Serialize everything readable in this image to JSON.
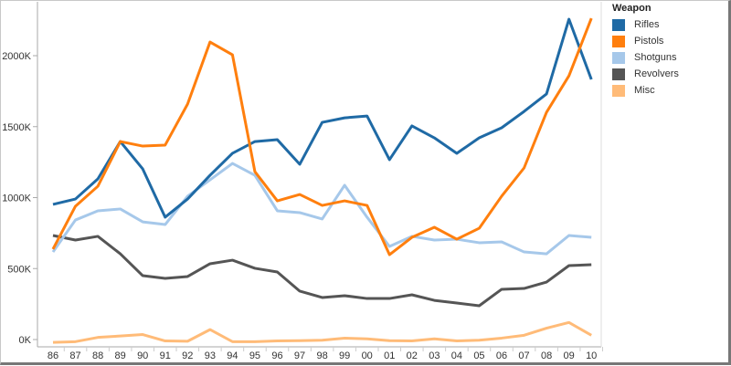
{
  "chart_data": {
    "type": "line",
    "title": "",
    "xlabel": "",
    "ylabel": "",
    "x": [
      "86",
      "87",
      "88",
      "89",
      "90",
      "91",
      "92",
      "93",
      "94",
      "95",
      "96",
      "97",
      "98",
      "99",
      "00",
      "01",
      "02",
      "03",
      "04",
      "05",
      "06",
      "07",
      "08",
      "09",
      "10"
    ],
    "y_ticks": [
      0,
      500,
      1000,
      1500,
      2000
    ],
    "y_tick_labels": [
      "0K",
      "500K",
      "1000K",
      "1500K",
      "2000K"
    ],
    "ylim": [
      -30,
      2350
    ],
    "legend_title": "Weapon",
    "legend_position": "right",
    "series": [
      {
        "name": "Rifles",
        "color": "#1f6aa5",
        "values": [
          952,
          990,
          1132,
          1395,
          1202,
          862,
          990,
          1157,
          1312,
          1395,
          1408,
          1235,
          1530,
          1562,
          1575,
          1267,
          1505,
          1421,
          1312,
          1421,
          1492,
          1607,
          1730,
          2257,
          1833
        ]
      },
      {
        "name": "Pistols",
        "color": "#ff7f0e",
        "values": [
          637,
          939,
          1080,
          1395,
          1363,
          1370,
          1659,
          2096,
          2006,
          1183,
          977,
          1022,
          945,
          977,
          945,
          598,
          720,
          791,
          707,
          784,
          1010,
          1209,
          1601,
          1858,
          2263
        ]
      },
      {
        "name": "Shotguns",
        "color": "#a6c8ea",
        "values": [
          617,
          842,
          907,
          920,
          829,
          810,
          1010,
          1125,
          1241,
          1157,
          907,
          894,
          849,
          1087,
          862,
          656,
          727,
          701,
          707,
          682,
          688,
          617,
          604,
          733,
          720
        ]
      },
      {
        "name": "Revolvers",
        "color": "#555555",
        "values": [
          733,
          701,
          727,
          604,
          450,
          431,
          444,
          534,
          559,
          502,
          476,
          341,
          296,
          309,
          289,
          289,
          315,
          276,
          257,
          238,
          354,
          360,
          405,
          521,
          527
        ]
      },
      {
        "name": "Misc",
        "color": "#ffbb78",
        "values": [
          -20,
          -15,
          15,
          25,
          35,
          -10,
          -12,
          70,
          -15,
          -15,
          -10,
          -8,
          -5,
          10,
          5,
          -8,
          -10,
          5,
          -10,
          -5,
          10,
          30,
          80,
          120,
          30
        ]
      }
    ]
  }
}
